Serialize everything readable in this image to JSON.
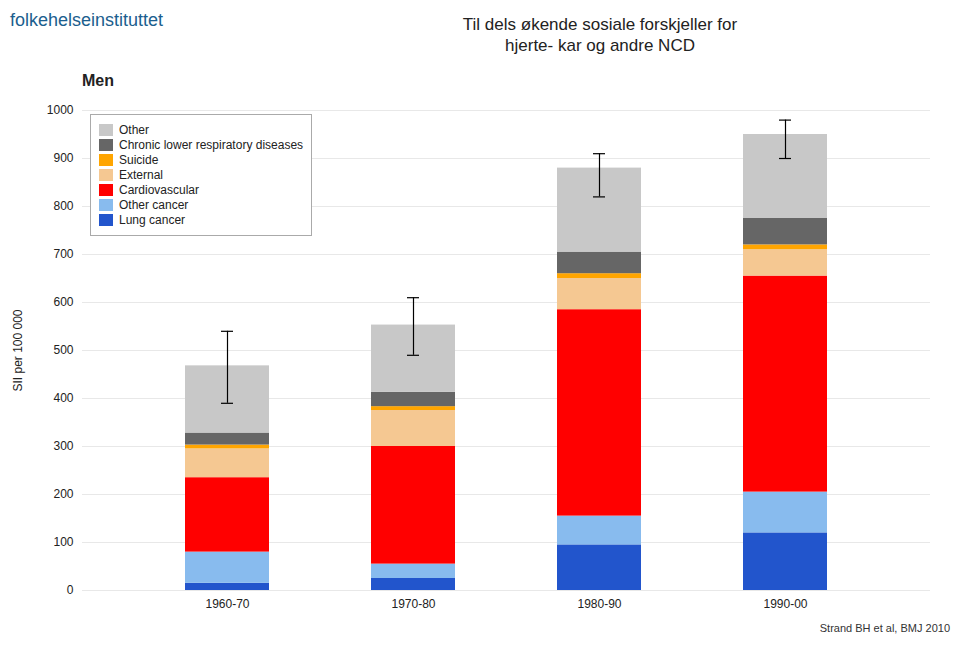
{
  "chart_data": {
    "type": "bar",
    "stacked": true,
    "title": "Til dels økende sosiale forskjeller for\nhjerte- kar og andre NCD",
    "subtitle": "Men",
    "ylabel": "SII per 100 000",
    "categories": [
      "1960-70",
      "1970-80",
      "1980-90",
      "1990-00"
    ],
    "series": [
      {
        "name": "Lung cancer",
        "color": "#2255CC",
        "values": [
          15,
          25,
          95,
          120
        ]
      },
      {
        "name": "Other cancer",
        "color": "#88BBEE",
        "values": [
          65,
          30,
          60,
          85
        ]
      },
      {
        "name": "Cardiovascular",
        "color": "#FF0000",
        "values": [
          155,
          245,
          430,
          450
        ]
      },
      {
        "name": "External",
        "color": "#F5C892",
        "values": [
          60,
          75,
          65,
          55
        ]
      },
      {
        "name": "Suicide",
        "color": "#FFA500",
        "values": [
          8,
          8,
          10,
          10
        ]
      },
      {
        "name": "Chronic lower respiratory diseases",
        "color": "#666666",
        "values": [
          25,
          30,
          45,
          55
        ]
      },
      {
        "name": "Other",
        "color": "#C8C8C8",
        "values": [
          140,
          140,
          175,
          175
        ]
      }
    ],
    "error_bars": [
      [
        390,
        540
      ],
      [
        490,
        610
      ],
      [
        820,
        910
      ],
      [
        900,
        980
      ]
    ],
    "ylim": [
      0,
      1000
    ],
    "yticks": [
      0,
      100,
      200,
      300,
      400,
      500,
      600,
      700,
      800,
      900,
      1000
    ],
    "grid": true,
    "legend": "upper left",
    "annotations": [
      "folkehelseinstituttet",
      "Strand BH et al, BMJ 2010"
    ]
  }
}
